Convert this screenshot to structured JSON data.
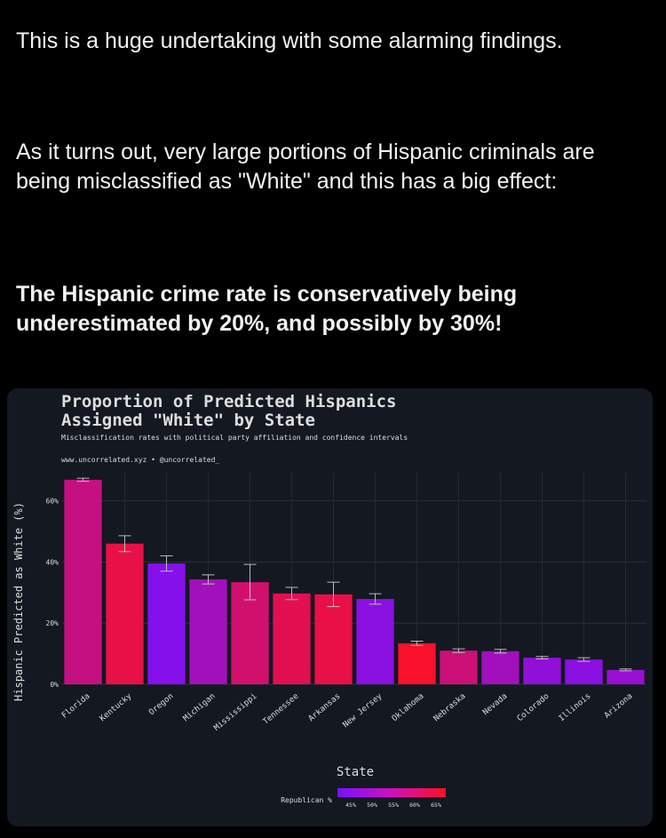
{
  "post": {
    "p1": "This is a huge undertaking with some alarming findings.",
    "p2": "As it turns out, very large portions of Hispanic criminals are being misclassified as \"White\" and this has a big effect:",
    "p3": "The Hispanic crime rate is conservatively being underestimated by 20%, and possibly by 30%!"
  },
  "chart_data": {
    "type": "bar",
    "title_line1": "Proportion of Predicted Hispanics",
    "title_line2": "Assigned \"White\" by State",
    "subtitle": "Misclassification rates with political party affiliation and confidence intervals",
    "credit": "www.uncorrelated.xyz • @uncorrelated_",
    "xlabel": "State",
    "ylabel": "Hispanic Predicted as White (%)",
    "ylim": [
      0,
      70
    ],
    "yticks": [
      0,
      20,
      40,
      60
    ],
    "ytick_labels": [
      "0%",
      "20%",
      "40%",
      "60%"
    ],
    "categories": [
      "Florida",
      "Kentucky",
      "Oregon",
      "Michigan",
      "Mississippi",
      "Tennessee",
      "Arkansas",
      "New Jersey",
      "Oklahoma",
      "Nebraska",
      "Nevada",
      "Colorado",
      "Illinois",
      "Arizona"
    ],
    "values": [
      66.9,
      46,
      39.5,
      34.3,
      33.4,
      29.7,
      29.4,
      27.9,
      13.4,
      11,
      10.8,
      8.7,
      8.1,
      4.7
    ],
    "error": [
      0.5,
      2.6,
      2.5,
      1.5,
      5.8,
      2,
      4,
      1.7,
      0.7,
      0.6,
      0.6,
      0.4,
      0.6,
      0.3
    ],
    "republican_pct": [
      56,
      62,
      45,
      50,
      58,
      61,
      62,
      46,
      65,
      57,
      50,
      47,
      46,
      48
    ],
    "legend": {
      "label": "Republican %",
      "ticks": [
        "45%",
        "50%",
        "55%",
        "60%",
        "65%"
      ],
      "range": [
        43,
        66
      ],
      "placement": "bottom-center"
    },
    "colors": {
      "low": "#7a10ff",
      "high": "#ff1020"
    },
    "grid": true
  }
}
